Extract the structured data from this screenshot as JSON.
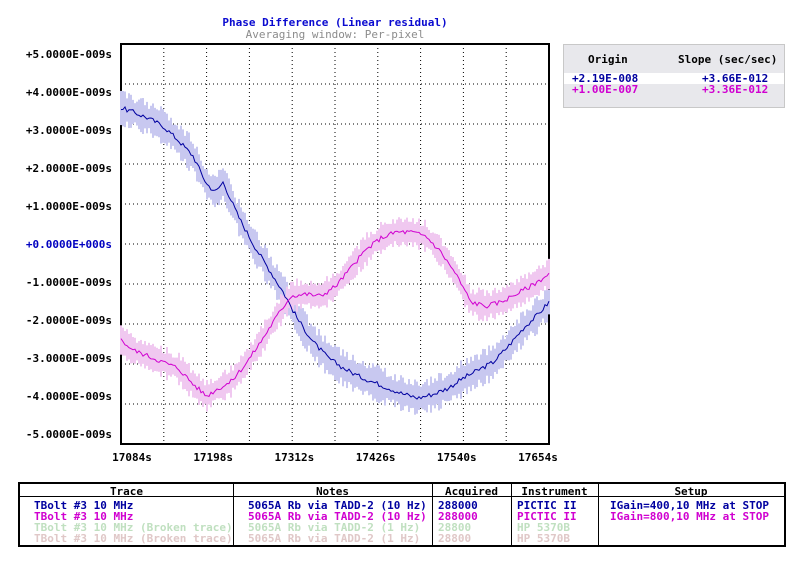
{
  "chart_data": {
    "type": "line",
    "title": "Phase Difference (Linear residual)",
    "subtitle": "Averaging window: Per-pixel",
    "x_ticks": [
      "17084s",
      "17198s",
      "17312s",
      "17426s",
      "17540s",
      "17654s"
    ],
    "y_ticks": [
      "+5.0000E-009s",
      "+4.0000E-009s",
      "+3.0000E-009s",
      "+2.0000E-009s",
      "+1.0000E-009s",
      "+0.0000E+000s",
      "-1.0000E-009s",
      "-2.0000E-009s",
      "-3.0000E-009s",
      "-4.0000E-009s",
      "-5.0000E-009s"
    ],
    "xlim": [
      17084,
      17654
    ],
    "ylim": [
      -5.0,
      5.0
    ],
    "y_unit": "E-009s",
    "grid": true,
    "series": [
      {
        "name": "TBolt #3 10 MHz (blue)",
        "color": "#0000a0",
        "band_color": "#c8c8f0",
        "x": [
          17084,
          17100,
          17120,
          17140,
          17160,
          17180,
          17198,
          17210,
          17220,
          17240,
          17260,
          17280,
          17300,
          17320,
          17340,
          17360,
          17380,
          17400,
          17420,
          17440,
          17460,
          17480,
          17500,
          17520,
          17540,
          17560,
          17580,
          17600,
          17620,
          17640,
          17654
        ],
        "y": [
          3.4,
          3.3,
          3.15,
          2.95,
          2.6,
          2.2,
          1.5,
          1.3,
          1.55,
          0.7,
          0.0,
          -0.6,
          -1.2,
          -1.9,
          -2.45,
          -2.85,
          -3.1,
          -3.3,
          -3.45,
          -3.6,
          -3.75,
          -3.85,
          -3.75,
          -3.6,
          -3.35,
          -3.15,
          -2.95,
          -2.55,
          -2.1,
          -1.75,
          -1.45
        ],
        "band_halfwidth": 0.4
      },
      {
        "name": "TBolt #3 10 MHz (magenta)",
        "color": "#d000d0",
        "band_color": "#f0c8f0",
        "x": [
          17084,
          17100,
          17120,
          17140,
          17160,
          17170,
          17180,
          17198,
          17210,
          17230,
          17250,
          17270,
          17290,
          17310,
          17330,
          17350,
          17370,
          17390,
          17410,
          17430,
          17450,
          17470,
          17490,
          17510,
          17530,
          17540,
          17550,
          17570,
          17590,
          17610,
          17630,
          17654
        ],
        "y": [
          -2.4,
          -2.65,
          -2.8,
          -2.95,
          -3.1,
          -3.3,
          -3.5,
          -3.8,
          -3.65,
          -3.45,
          -3.0,
          -2.45,
          -1.85,
          -1.3,
          -1.25,
          -1.3,
          -1.05,
          -0.6,
          -0.15,
          0.15,
          0.3,
          0.3,
          0.2,
          -0.2,
          -0.75,
          -1.1,
          -1.45,
          -1.55,
          -1.45,
          -1.25,
          -1.05,
          -0.75
        ],
        "band_halfwidth": 0.35
      }
    ]
  },
  "side_panel": {
    "headers": {
      "origin": "Origin",
      "slope": "Slope (sec/sec)"
    },
    "rows": [
      {
        "origin": "+2.19E-008",
        "slope": "+3.66E-012",
        "color": "#0000a0",
        "bg": "#ffffff"
      },
      {
        "origin": "+1.00E-007",
        "slope": "+3.36E-012",
        "color": "#d000d0",
        "bg": "#e8e8ec"
      }
    ]
  },
  "table": {
    "headers": {
      "trace": "Trace",
      "notes": "Notes",
      "acquired": "Acquired",
      "instrument": "Instrument",
      "setup": "Setup"
    },
    "rows": [
      {
        "trace": "TBolt #3 10 MHz",
        "notes": "5065A Rb via TADD-2 (10 Hz)",
        "acquired": "288000",
        "instrument": "PICTIC II",
        "setup": "IGain=400,10 MHz at STOP",
        "color": "#0000a0"
      },
      {
        "trace": "TBolt #3 10 MHz",
        "notes": "5065A Rb via TADD-2 (10 Hz)",
        "acquired": "288000",
        "instrument": "PICTIC II",
        "setup": "IGain=800,10 MHz at STOP",
        "color": "#d000d0"
      },
      {
        "trace": "TBolt #3 10 MHz (Broken trace)",
        "notes": "5065A Rb via TADD-2 (1 Hz)",
        "acquired": "28800",
        "instrument": "HP 5370B",
        "setup": "",
        "color": "#c0e0c0"
      },
      {
        "trace": "TBolt #3 10 MHz (Broken trace)",
        "notes": "5065A Rb via TADD-2 (1 Hz)",
        "acquired": "28800",
        "instrument": "HP 5370B",
        "setup": "",
        "color": "#e0c8c8"
      }
    ]
  }
}
